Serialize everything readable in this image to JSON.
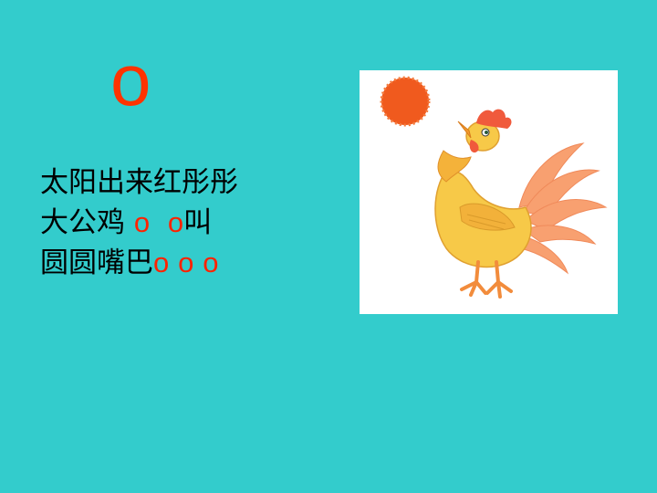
{
  "slide": {
    "letter": "o",
    "poem": {
      "line1": "太阳出来红彤彤",
      "line2": {
        "pre": "大公鸡",
        "o1": "o",
        "o2": "o",
        "post": "叫"
      },
      "line3": {
        "pre": "圆圆嘴巴",
        "o1": "o",
        "o2": "o",
        "o3": "o"
      }
    },
    "illustration": {
      "sun_color": "#F05A1E",
      "rooster_color": "#F5C23C"
    }
  }
}
